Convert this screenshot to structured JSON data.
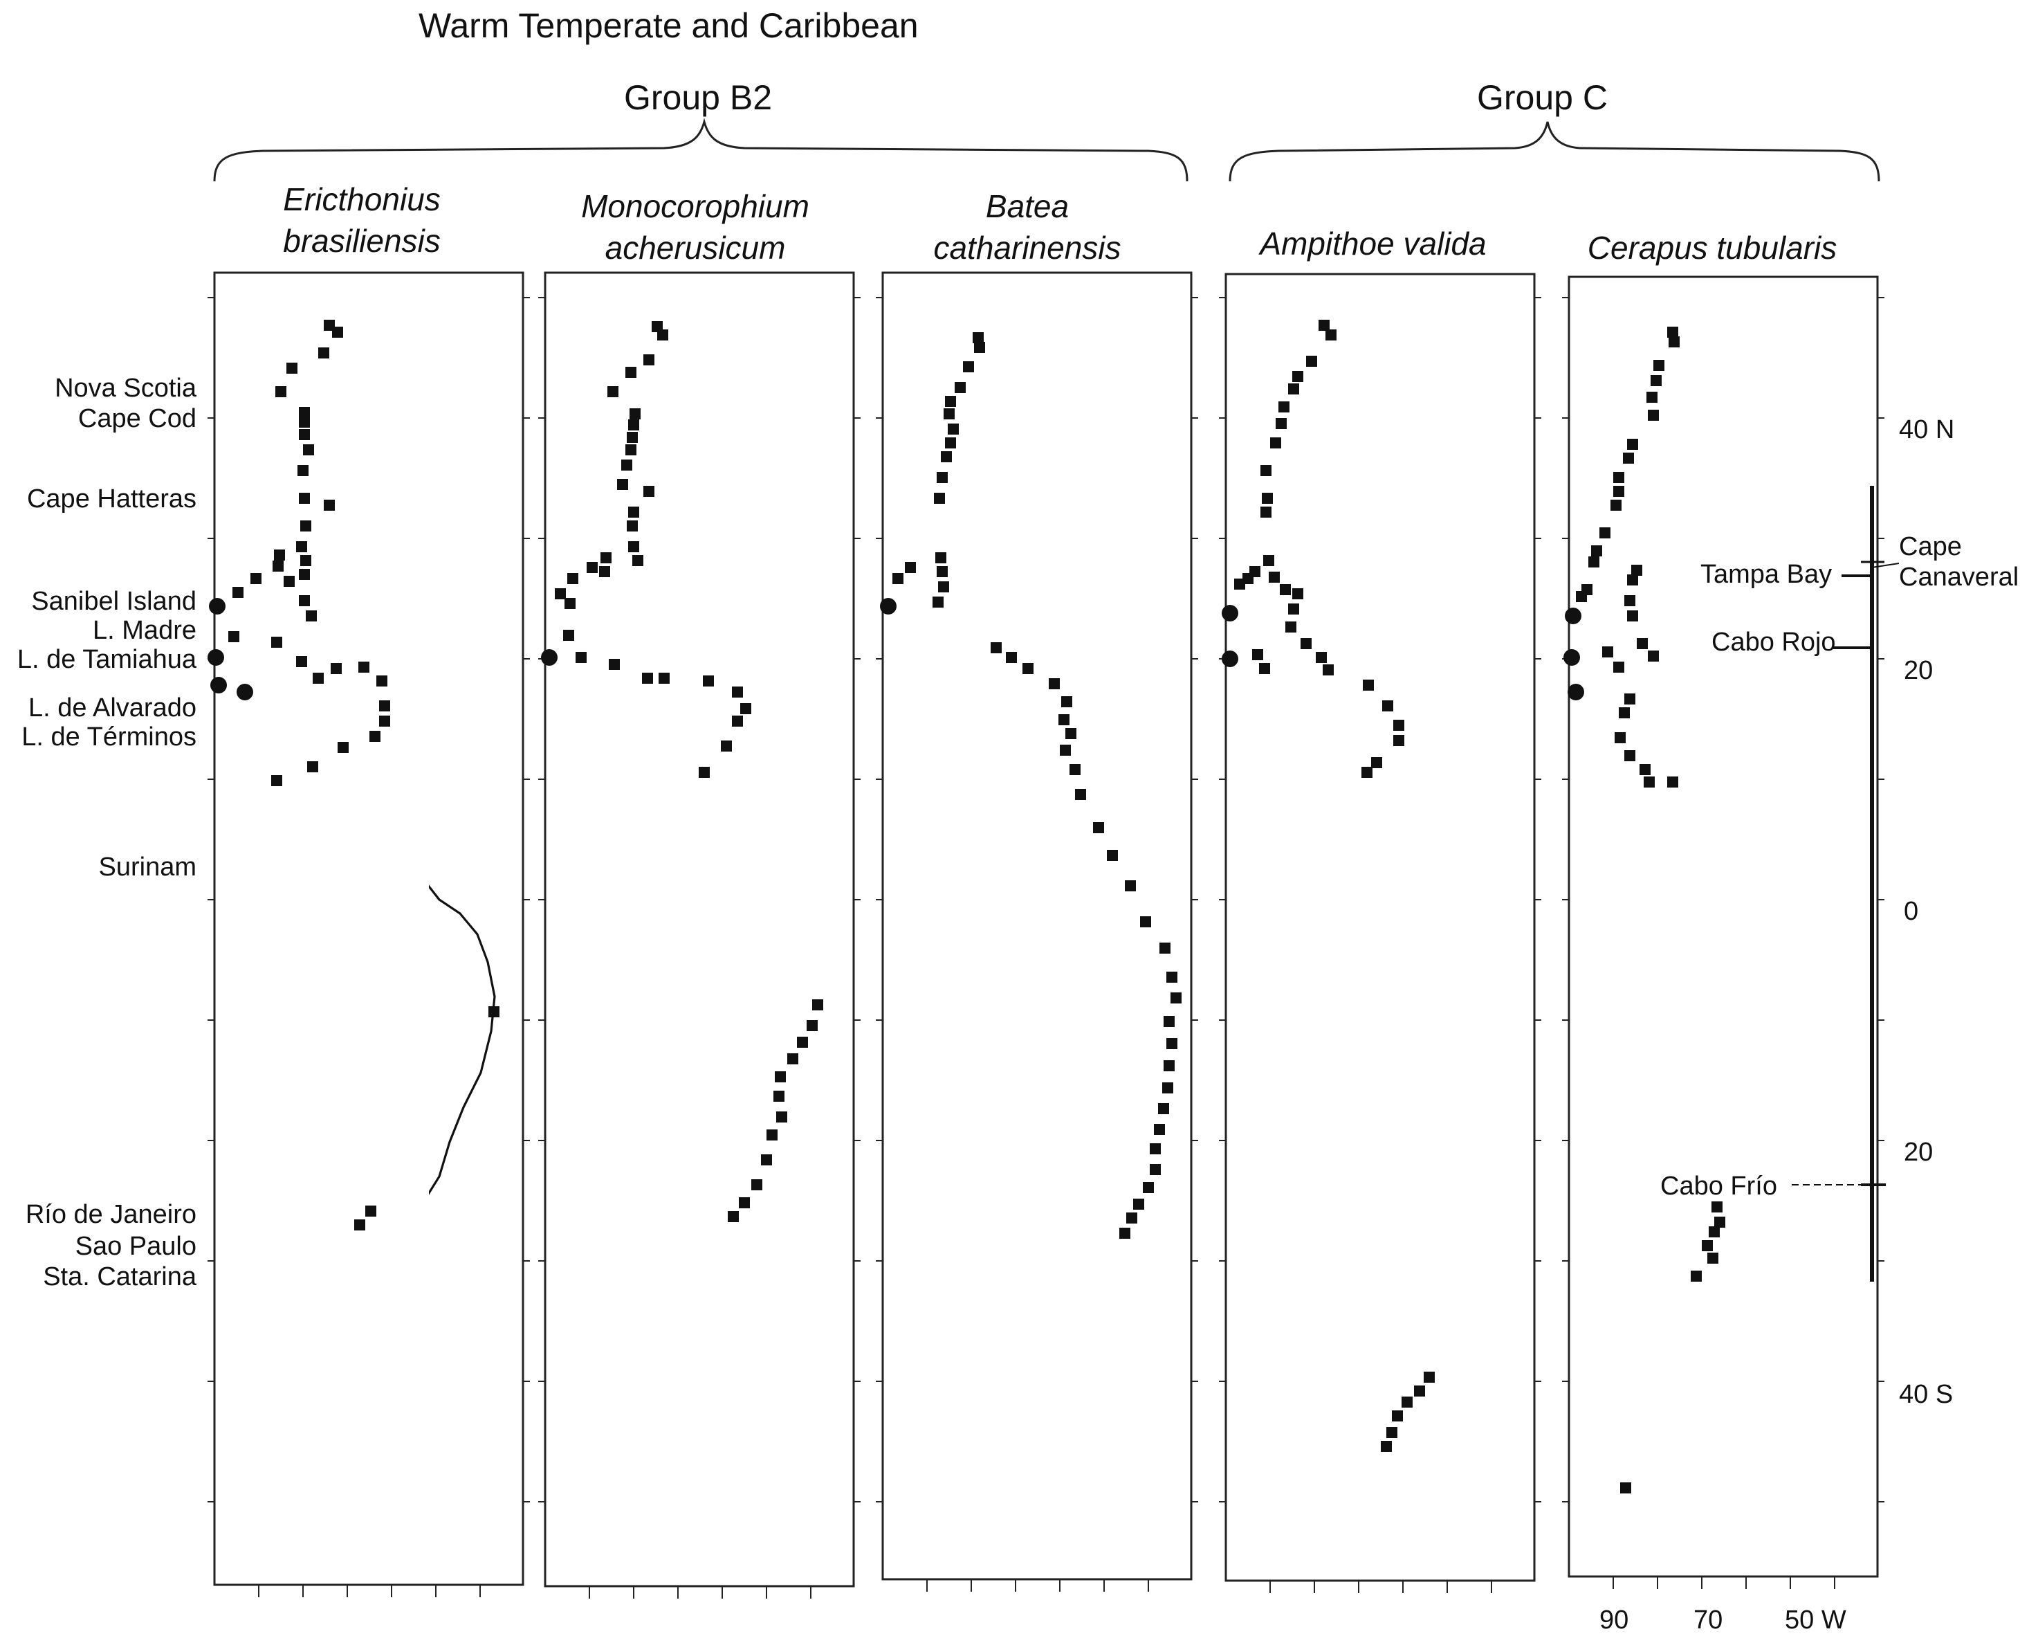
{
  "figure": {
    "super_title": "Warm Temperate and Caribbean",
    "groups": [
      {
        "label": "Group B2"
      },
      {
        "label": "Group C"
      }
    ],
    "panels": [
      {
        "species_line1": "Ericthonius",
        "species_line2": "brasiliensis"
      },
      {
        "species_line1": "Monocorophium",
        "species_line2": "acherusicum"
      },
      {
        "species_line1": "Batea",
        "species_line2": "catharinensis"
      },
      {
        "species_line1": "Ampithoe valida",
        "species_line2": ""
      },
      {
        "species_line1": "Cerapus tubularis",
        "species_line2": ""
      }
    ],
    "locality_labels": {
      "nova_scotia": "Nova Scotia",
      "cape_cod": "Cape Cod",
      "cape_hatteras": "Cape Hatteras",
      "sanibel_island": "Sanibel Island",
      "l_madre": "L. Madre",
      "l_tamiahua": "L. de Tamiahua",
      "l_alvarado": "L. de Alvarado",
      "l_terminos": "L. de Términos",
      "surinam": "Surinam",
      "rio": "Río de Janeiro",
      "sao_paulo": "Sao Paulo",
      "sta_catarina": "Sta. Catarina"
    },
    "latitude_labels": {
      "n40": "40 N",
      "n20": "20",
      "zero": "0",
      "s20": "20",
      "s40": "40 S"
    },
    "longitude_labels": {
      "w90": "90",
      "w70": "70",
      "w50": "50 W"
    },
    "range_labels": {
      "cape_line1": "Cape",
      "cape_line2": "Canaveral",
      "tampa_bay": "Tampa Bay",
      "cabo_rojo": "Cabo Rojo",
      "cabo_frio": "Cabo Frío"
    }
  }
}
